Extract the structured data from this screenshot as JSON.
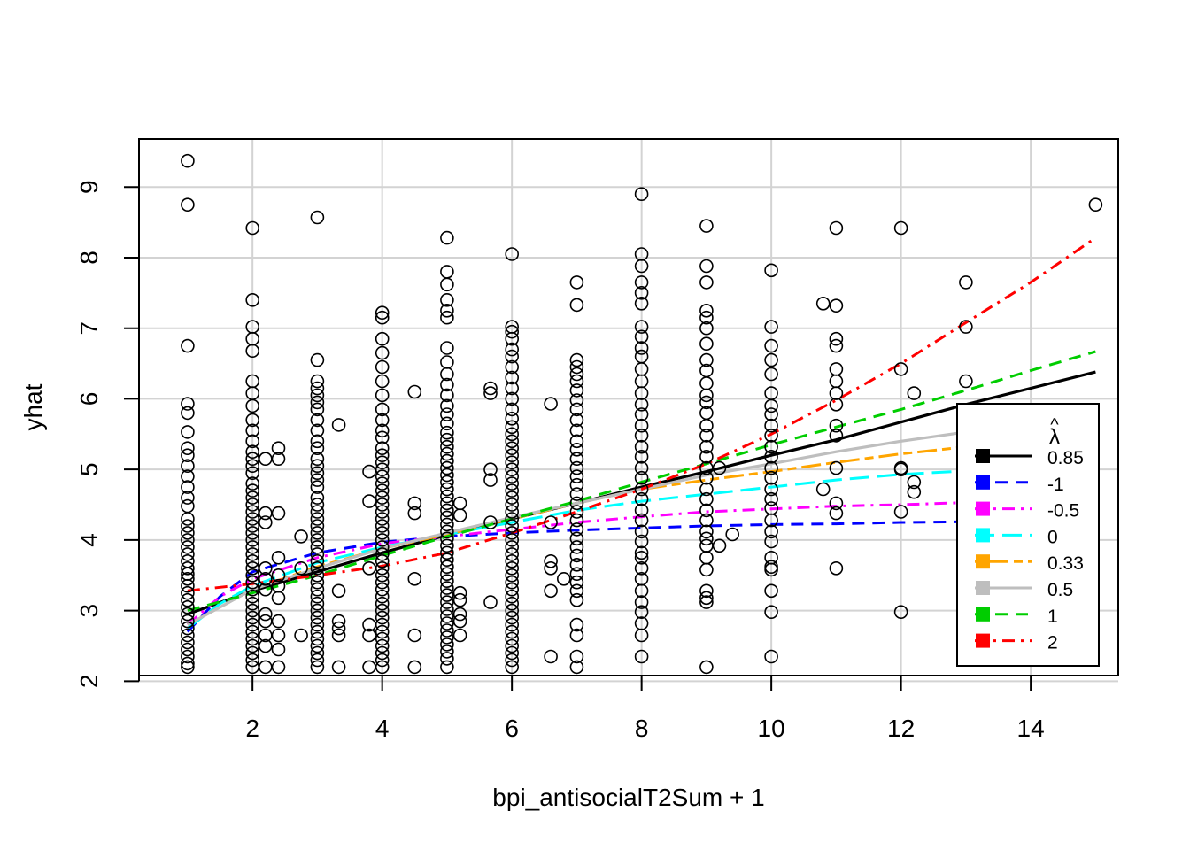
{
  "chart_data": {
    "type": "scatter",
    "title": "",
    "xlabel": "bpi_antisocialT2Sum + 1",
    "ylabel": "yhat",
    "xlim": [
      0.25,
      15.35
    ],
    "ylim": [
      2.08,
      9.68
    ],
    "x_ticks": [
      2,
      4,
      6,
      8,
      10,
      12,
      14
    ],
    "y_ticks": [
      2,
      3,
      4,
      5,
      6,
      7,
      8,
      9
    ],
    "x_tick_labels": [
      "2",
      "4",
      "6",
      "8",
      "10",
      "12",
      "14"
    ],
    "y_tick_labels": [
      "2",
      "3",
      "4",
      "5",
      "6",
      "7",
      "8",
      "9"
    ],
    "grid": true,
    "points": {
      "marker": "open-circle",
      "groups": [
        {
          "x": 1,
          "y": [
            9.37,
            8.75,
            6.75,
            5.93,
            5.8,
            5.53,
            5.3,
            5.2,
            5.05,
            4.9,
            4.75,
            4.6,
            4.48,
            4.3,
            4.2,
            4.1,
            4.0,
            3.9,
            3.8,
            3.7,
            3.6,
            3.52,
            3.45,
            3.35,
            3.25,
            3.15,
            3.05,
            2.95,
            2.85,
            2.75,
            2.65,
            2.55,
            2.45,
            2.35,
            2.25,
            2.2
          ]
        },
        {
          "x": 2,
          "y": [
            8.42,
            7.4,
            7.02,
            6.85,
            6.68,
            6.25,
            6.08,
            5.9,
            5.7,
            5.55,
            5.4,
            5.25,
            5.15,
            5.05,
            4.95,
            4.8,
            4.7,
            4.6,
            4.5,
            4.4,
            4.3,
            4.2,
            4.1,
            4.0,
            3.9,
            3.8,
            3.7,
            3.6,
            3.5,
            3.4,
            3.3,
            3.2,
            3.1,
            3.0,
            2.9,
            2.8,
            2.7,
            2.6,
            2.5,
            2.4,
            2.3,
            2.2
          ]
        },
        {
          "x": 2.2,
          "y": [
            5.15,
            4.38,
            4.25,
            3.6,
            3.45,
            3.3,
            2.95,
            2.85,
            2.65,
            2.5,
            2.2
          ]
        },
        {
          "x": 2.4,
          "y": [
            5.3,
            5.15,
            4.38,
            3.75,
            3.5,
            3.35,
            3.18,
            2.85,
            2.65,
            2.45,
            2.2
          ]
        },
        {
          "x": 2.75,
          "y": [
            4.05,
            3.6,
            2.65
          ]
        },
        {
          "x": 3,
          "y": [
            8.57,
            6.55,
            6.25,
            6.15,
            6.05,
            5.95,
            5.85,
            5.7,
            5.55,
            5.4,
            5.3,
            5.15,
            5.05,
            4.95,
            4.85,
            4.75,
            4.6,
            4.5,
            4.4,
            4.3,
            4.2,
            4.1,
            4.0,
            3.9,
            3.8,
            3.7,
            3.6,
            3.5,
            3.4,
            3.3,
            3.2,
            3.1,
            3.0,
            2.9,
            2.8,
            2.7,
            2.6,
            2.5,
            2.4,
            2.3,
            2.2
          ]
        },
        {
          "x": 3.33,
          "y": [
            5.63,
            3.28,
            2.85,
            2.75,
            2.65,
            2.2
          ]
        },
        {
          "x": 3.8,
          "y": [
            4.97,
            4.55,
            3.6,
            2.8,
            2.65,
            2.2
          ]
        },
        {
          "x": 4,
          "y": [
            7.22,
            7.15,
            6.85,
            6.65,
            6.45,
            6.25,
            6.05,
            5.85,
            5.7,
            5.55,
            5.45,
            5.3,
            5.2,
            5.1,
            5.0,
            4.9,
            4.8,
            4.7,
            4.6,
            4.5,
            4.4,
            4.3,
            4.2,
            4.1,
            4.0,
            3.9,
            3.8,
            3.7,
            3.6,
            3.5,
            3.4,
            3.3,
            3.2,
            3.1,
            3.0,
            2.9,
            2.8,
            2.7,
            2.6,
            2.5,
            2.4,
            2.3,
            2.2
          ]
        },
        {
          "x": 4.5,
          "y": [
            6.1,
            4.52,
            4.38,
            3.45,
            2.65,
            2.2
          ]
        },
        {
          "x": 5,
          "y": [
            8.28,
            7.8,
            7.62,
            7.4,
            7.25,
            7.15,
            6.72,
            6.52,
            6.35,
            6.2,
            6.05,
            5.9,
            5.78,
            5.65,
            5.52,
            5.42,
            5.32,
            5.22,
            5.12,
            5.02,
            4.92,
            4.82,
            4.72,
            4.62,
            4.52,
            4.42,
            4.32,
            4.22,
            4.12,
            4.02,
            3.92,
            3.82,
            3.72,
            3.62,
            3.52,
            3.42,
            3.32,
            3.22,
            3.12,
            3.02,
            2.92,
            2.82,
            2.72,
            2.62,
            2.52,
            2.42,
            2.32,
            2.2
          ]
        },
        {
          "x": 5.2,
          "y": [
            4.52,
            4.35,
            3.25,
            3.15,
            2.95,
            2.85,
            2.65
          ]
        },
        {
          "x": 5.67,
          "y": [
            6.15,
            6.08,
            5.0,
            4.85,
            4.25,
            3.12
          ]
        },
        {
          "x": 6,
          "y": [
            8.05,
            7.02,
            6.95,
            6.85,
            6.7,
            6.6,
            6.45,
            6.3,
            6.15,
            6.0,
            5.85,
            5.72,
            5.6,
            5.5,
            5.4,
            5.3,
            5.2,
            5.1,
            5.0,
            4.9,
            4.8,
            4.7,
            4.6,
            4.5,
            4.4,
            4.3,
            4.2,
            4.1,
            4.0,
            3.9,
            3.8,
            3.7,
            3.6,
            3.5,
            3.4,
            3.3,
            3.2,
            3.1,
            3.0,
            2.9,
            2.8,
            2.7,
            2.6,
            2.5,
            2.4,
            2.3,
            2.2
          ]
        },
        {
          "x": 6.6,
          "y": [
            5.93,
            4.25,
            3.7,
            3.6,
            3.28,
            2.35
          ]
        },
        {
          "x": 6.8,
          "y": [
            3.45
          ]
        },
        {
          "x": 7,
          "y": [
            7.65,
            7.33,
            6.55,
            6.45,
            6.35,
            6.25,
            6.12,
            5.98,
            5.85,
            5.7,
            5.55,
            5.4,
            5.28,
            5.15,
            5.02,
            4.9,
            4.78,
            4.65,
            4.52,
            4.4,
            4.28,
            4.15,
            4.02,
            3.9,
            3.78,
            3.65,
            3.52,
            3.4,
            3.28,
            3.15,
            2.8,
            2.65,
            2.35,
            2.2
          ]
        },
        {
          "x": 8,
          "y": [
            8.9,
            8.05,
            7.88,
            7.65,
            7.5,
            7.35,
            7.02,
            6.88,
            6.72,
            6.6,
            6.42,
            6.25,
            6.08,
            5.92,
            5.78,
            5.62,
            5.48,
            5.32,
            5.18,
            5.02,
            4.88,
            4.72,
            4.58,
            4.42,
            4.28,
            4.12,
            3.98,
            3.82,
            3.75,
            3.6,
            3.45,
            3.28,
            3.12,
            2.98,
            2.82,
            2.65,
            2.35
          ]
        },
        {
          "x": 9,
          "y": [
            8.45,
            7.88,
            7.65,
            7.25,
            7.15,
            7.0,
            6.78,
            6.55,
            6.4,
            6.22,
            6.05,
            5.95,
            5.8,
            5.62,
            5.48,
            5.32,
            5.18,
            5.02,
            4.88,
            4.72,
            4.58,
            4.42,
            4.28,
            4.12,
            4.02,
            3.92,
            3.75,
            3.58,
            3.28,
            3.18,
            3.12,
            2.2
          ]
        },
        {
          "x": 9.2,
          "y": [
            5.02,
            3.92
          ]
        },
        {
          "x": 9.4,
          "y": [
            4.08
          ]
        },
        {
          "x": 10,
          "y": [
            7.82,
            7.02,
            6.75,
            6.55,
            6.35,
            6.08,
            5.9,
            5.78,
            5.62,
            5.48,
            5.32,
            5.18,
            5.02,
            4.88,
            4.72,
            4.58,
            4.45,
            4.28,
            4.12,
            3.98,
            3.75,
            3.62,
            3.58,
            3.28,
            2.98,
            2.35
          ]
        },
        {
          "x": 10.8,
          "y": [
            7.35,
            4.72
          ]
        },
        {
          "x": 11,
          "y": [
            8.42,
            7.32,
            6.85,
            6.75,
            6.42,
            6.25,
            6.08,
            5.92,
            5.62,
            5.48,
            5.02,
            4.52,
            4.38,
            3.6
          ]
        },
        {
          "x": 12,
          "y": [
            8.42,
            6.42,
            5.02,
            5.0,
            4.4,
            2.98
          ]
        },
        {
          "x": 12.2,
          "y": [
            6.08,
            4.82,
            4.68
          ]
        },
        {
          "x": 13,
          "y": [
            7.65,
            7.02,
            6.25,
            5.8
          ]
        },
        {
          "x": 15,
          "y": [
            8.75
          ]
        }
      ]
    },
    "series": [
      {
        "name": "0.85",
        "color": "#000000",
        "dash": "solid",
        "width": 3.2,
        "x": [
          1,
          2,
          3,
          4,
          5,
          6,
          7,
          8,
          9,
          10,
          11,
          12,
          13,
          14,
          15
        ],
        "y": [
          2.95,
          3.28,
          3.55,
          3.82,
          4.07,
          4.3,
          4.52,
          4.75,
          4.97,
          5.2,
          5.42,
          5.67,
          5.92,
          6.15,
          6.38
        ]
      },
      {
        "name": "-1",
        "color": "#0000ff",
        "dash": "dashed",
        "width": 3,
        "x": [
          1,
          1.5,
          2,
          3,
          4,
          5,
          6,
          7,
          8,
          9,
          10,
          11,
          12,
          13,
          14
        ],
        "y": [
          2.7,
          3.2,
          3.55,
          3.82,
          3.97,
          4.05,
          4.1,
          4.14,
          4.17,
          4.2,
          4.22,
          4.23,
          4.25,
          4.26,
          4.27
        ]
      },
      {
        "name": "-0.5",
        "color": "#ff00ff",
        "dash": "dashdot",
        "width": 3,
        "x": [
          1,
          1.5,
          2,
          3,
          4,
          5,
          6,
          7,
          8,
          9,
          10,
          11,
          12,
          13,
          14
        ],
        "y": [
          2.8,
          3.2,
          3.45,
          3.75,
          3.95,
          4.05,
          4.15,
          4.25,
          4.33,
          4.4,
          4.44,
          4.48,
          4.5,
          4.53,
          4.56
        ]
      },
      {
        "name": "0",
        "color": "#00ffff",
        "dash": "longdash",
        "width": 3,
        "x": [
          1,
          1.5,
          2,
          3,
          4,
          5,
          6,
          7,
          8,
          9,
          10,
          11,
          12,
          13,
          14
        ],
        "y": [
          2.75,
          3.1,
          3.35,
          3.68,
          3.9,
          4.08,
          4.25,
          4.42,
          4.55,
          4.65,
          4.75,
          4.85,
          4.93,
          4.98,
          5.02
        ]
      },
      {
        "name": "0.33",
        "color": "#ffa500",
        "dash": "twodash",
        "width": 3,
        "x": [
          1,
          1.5,
          2,
          3,
          4,
          5,
          6,
          7,
          8,
          9,
          10,
          11,
          12,
          13,
          14
        ],
        "y": [
          2.8,
          3.05,
          3.3,
          3.62,
          3.88,
          4.08,
          4.3,
          4.52,
          4.72,
          4.85,
          4.97,
          5.1,
          5.22,
          5.32,
          5.4
        ]
      },
      {
        "name": "0.5",
        "color": "#bebebe",
        "dash": "solid",
        "width": 3.2,
        "x": [
          1,
          1.5,
          2,
          3,
          4,
          5,
          6,
          7,
          8,
          9,
          10,
          11,
          12,
          13,
          14
        ],
        "y": [
          2.8,
          3.05,
          3.3,
          3.6,
          3.88,
          4.1,
          4.32,
          4.52,
          4.72,
          4.92,
          5.08,
          5.25,
          5.4,
          5.53,
          5.65
        ]
      },
      {
        "name": "1",
        "color": "#00cd00",
        "dash": "dashed",
        "width": 3,
        "x": [
          1,
          2,
          3,
          4,
          5,
          6,
          7,
          8,
          9,
          10,
          11,
          12,
          13,
          14,
          15
        ],
        "y": [
          3.0,
          3.25,
          3.5,
          3.78,
          4.05,
          4.3,
          4.55,
          4.82,
          5.08,
          5.35,
          5.6,
          5.85,
          6.12,
          6.4,
          6.67
        ]
      },
      {
        "name": "2",
        "color": "#ff0000",
        "dash": "dashdot",
        "width": 3,
        "x": [
          1,
          2,
          3,
          4,
          5,
          6,
          7,
          8,
          9,
          10,
          11,
          12,
          13,
          14,
          15
        ],
        "y": [
          3.28,
          3.38,
          3.5,
          3.63,
          3.82,
          4.1,
          4.4,
          4.72,
          5.08,
          5.5,
          5.98,
          6.5,
          7.08,
          7.65,
          8.28
        ]
      }
    ],
    "legend": {
      "placement": "bottom-right",
      "title": "λ̂",
      "title_symbol": "λ",
      "title_hat": "^"
    }
  }
}
